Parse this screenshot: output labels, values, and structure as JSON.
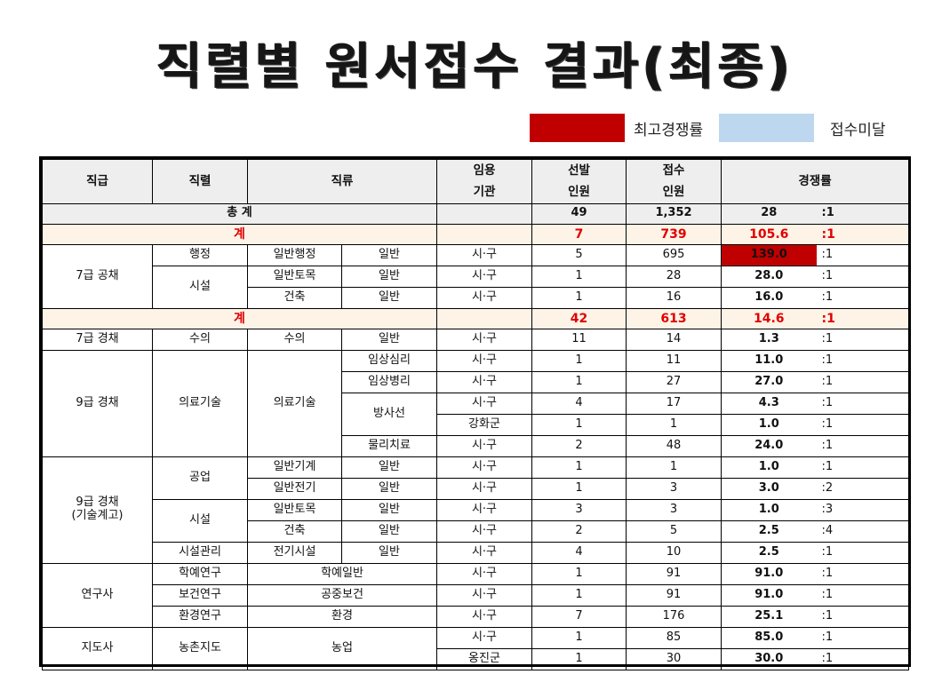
{
  "title": "직렬별 원서접수 결과(최종)",
  "legend": [
    {
      "label": "최고경쟁률",
      "color": "#c00000"
    },
    {
      "label": "접수미달",
      "color": "#bdd7ee"
    }
  ],
  "headers": {
    "grade": "직급",
    "series": "직렬",
    "class": "직류",
    "agency_1": "임용",
    "agency_2": "기관",
    "quota_1": "선발",
    "quota_2": "인원",
    "applied_1": "접수",
    "applied_2": "인원",
    "rate": "경쟁률"
  },
  "total": {
    "label": "총 계",
    "quota": "49",
    "applied": "1,352",
    "rate": "28",
    "ratio": ":1"
  },
  "sub1": {
    "label": "계",
    "quota": "7",
    "applied": "739",
    "rate": "105.6",
    "ratio": ":1"
  },
  "sub2": {
    "label": "계",
    "quota": "42",
    "applied": "613",
    "rate": "14.6",
    "ratio": ":1"
  },
  "rows": [
    {
      "grade": "7급 공채",
      "series": "행정",
      "class": "일반행정",
      "sub": "일반",
      "agency": "시·구",
      "quota": "5",
      "applied": "695",
      "rate": "139.0",
      "ratio": ":1"
    },
    {
      "series": "시설",
      "class": "일반토목",
      "sub": "일반",
      "agency": "시·구",
      "quota": "1",
      "applied": "28",
      "rate": "28.0",
      "ratio": ":1"
    },
    {
      "class": "건축",
      "sub": "일반",
      "agency": "시·구",
      "quota": "1",
      "applied": "16",
      "rate": "16.0",
      "ratio": ":1"
    },
    {
      "grade": "7급 경채",
      "series": "수의",
      "class": "수의",
      "sub": "일반",
      "agency": "시·구",
      "quota": "11",
      "applied": "14",
      "rate": "1.3",
      "ratio": ":1"
    },
    {
      "grade": "9급 경채",
      "series": "의료기술",
      "class": "의료기술",
      "sub": "임상심리",
      "agency": "시·구",
      "quota": "1",
      "applied": "11",
      "rate": "11.0",
      "ratio": ":1"
    },
    {
      "sub": "임상병리",
      "agency": "시·구",
      "quota": "1",
      "applied": "27",
      "rate": "27.0",
      "ratio": ":1"
    },
    {
      "sub": "방사선",
      "agency": "시·구",
      "quota": "4",
      "applied": "17",
      "rate": "4.3",
      "ratio": ":1"
    },
    {
      "agency": "강화군",
      "quota": "1",
      "applied": "1",
      "rate": "1.0",
      "ratio": ":1"
    },
    {
      "sub": "물리치료",
      "agency": "시·구",
      "quota": "2",
      "applied": "48",
      "rate": "24.0",
      "ratio": ":1"
    },
    {
      "grade_1": "9급 경채",
      "grade_2": "(기술계고)",
      "series": "공업",
      "class": "일반기계",
      "sub": "일반",
      "agency": "시·구",
      "quota": "1",
      "applied": "1",
      "rate": "1.0",
      "ratio": ":1"
    },
    {
      "class": "일반전기",
      "sub": "일반",
      "agency": "시·구",
      "quota": "1",
      "applied": "3",
      "rate": "3.0",
      "ratio": ":2"
    },
    {
      "series": "시설",
      "class": "일반토목",
      "sub": "일반",
      "agency": "시·구",
      "quota": "3",
      "applied": "3",
      "rate": "1.0",
      "ratio": ":3"
    },
    {
      "class": "건축",
      "sub": "일반",
      "agency": "시·구",
      "quota": "2",
      "applied": "5",
      "rate": "2.5",
      "ratio": ":4"
    },
    {
      "series": "시설관리",
      "class": "전기시설",
      "sub": "일반",
      "agency": "시·구",
      "quota": "4",
      "applied": "10",
      "rate": "2.5",
      "ratio": ":1"
    },
    {
      "grade": "연구사",
      "series": "학예연구",
      "class": "학예일반",
      "agency": "시·구",
      "quota": "1",
      "applied": "91",
      "rate": "91.0",
      "ratio": ":1"
    },
    {
      "series": "보건연구",
      "class": "공중보건",
      "agency": "시·구",
      "quota": "1",
      "applied": "91",
      "rate": "91.0",
      "ratio": ":1"
    },
    {
      "series": "환경연구",
      "class": "환경",
      "agency": "시·구",
      "quota": "7",
      "applied": "176",
      "rate": "25.1",
      "ratio": ":1"
    },
    {
      "grade": "지도사",
      "series": "농촌지도",
      "class": "농업",
      "agency": "시·구",
      "quota": "1",
      "applied": "85",
      "rate": "85.0",
      "ratio": ":1"
    },
    {
      "agency": "옹진군",
      "quota": "1",
      "applied": "30",
      "rate": "30.0",
      "ratio": ":1"
    }
  ]
}
